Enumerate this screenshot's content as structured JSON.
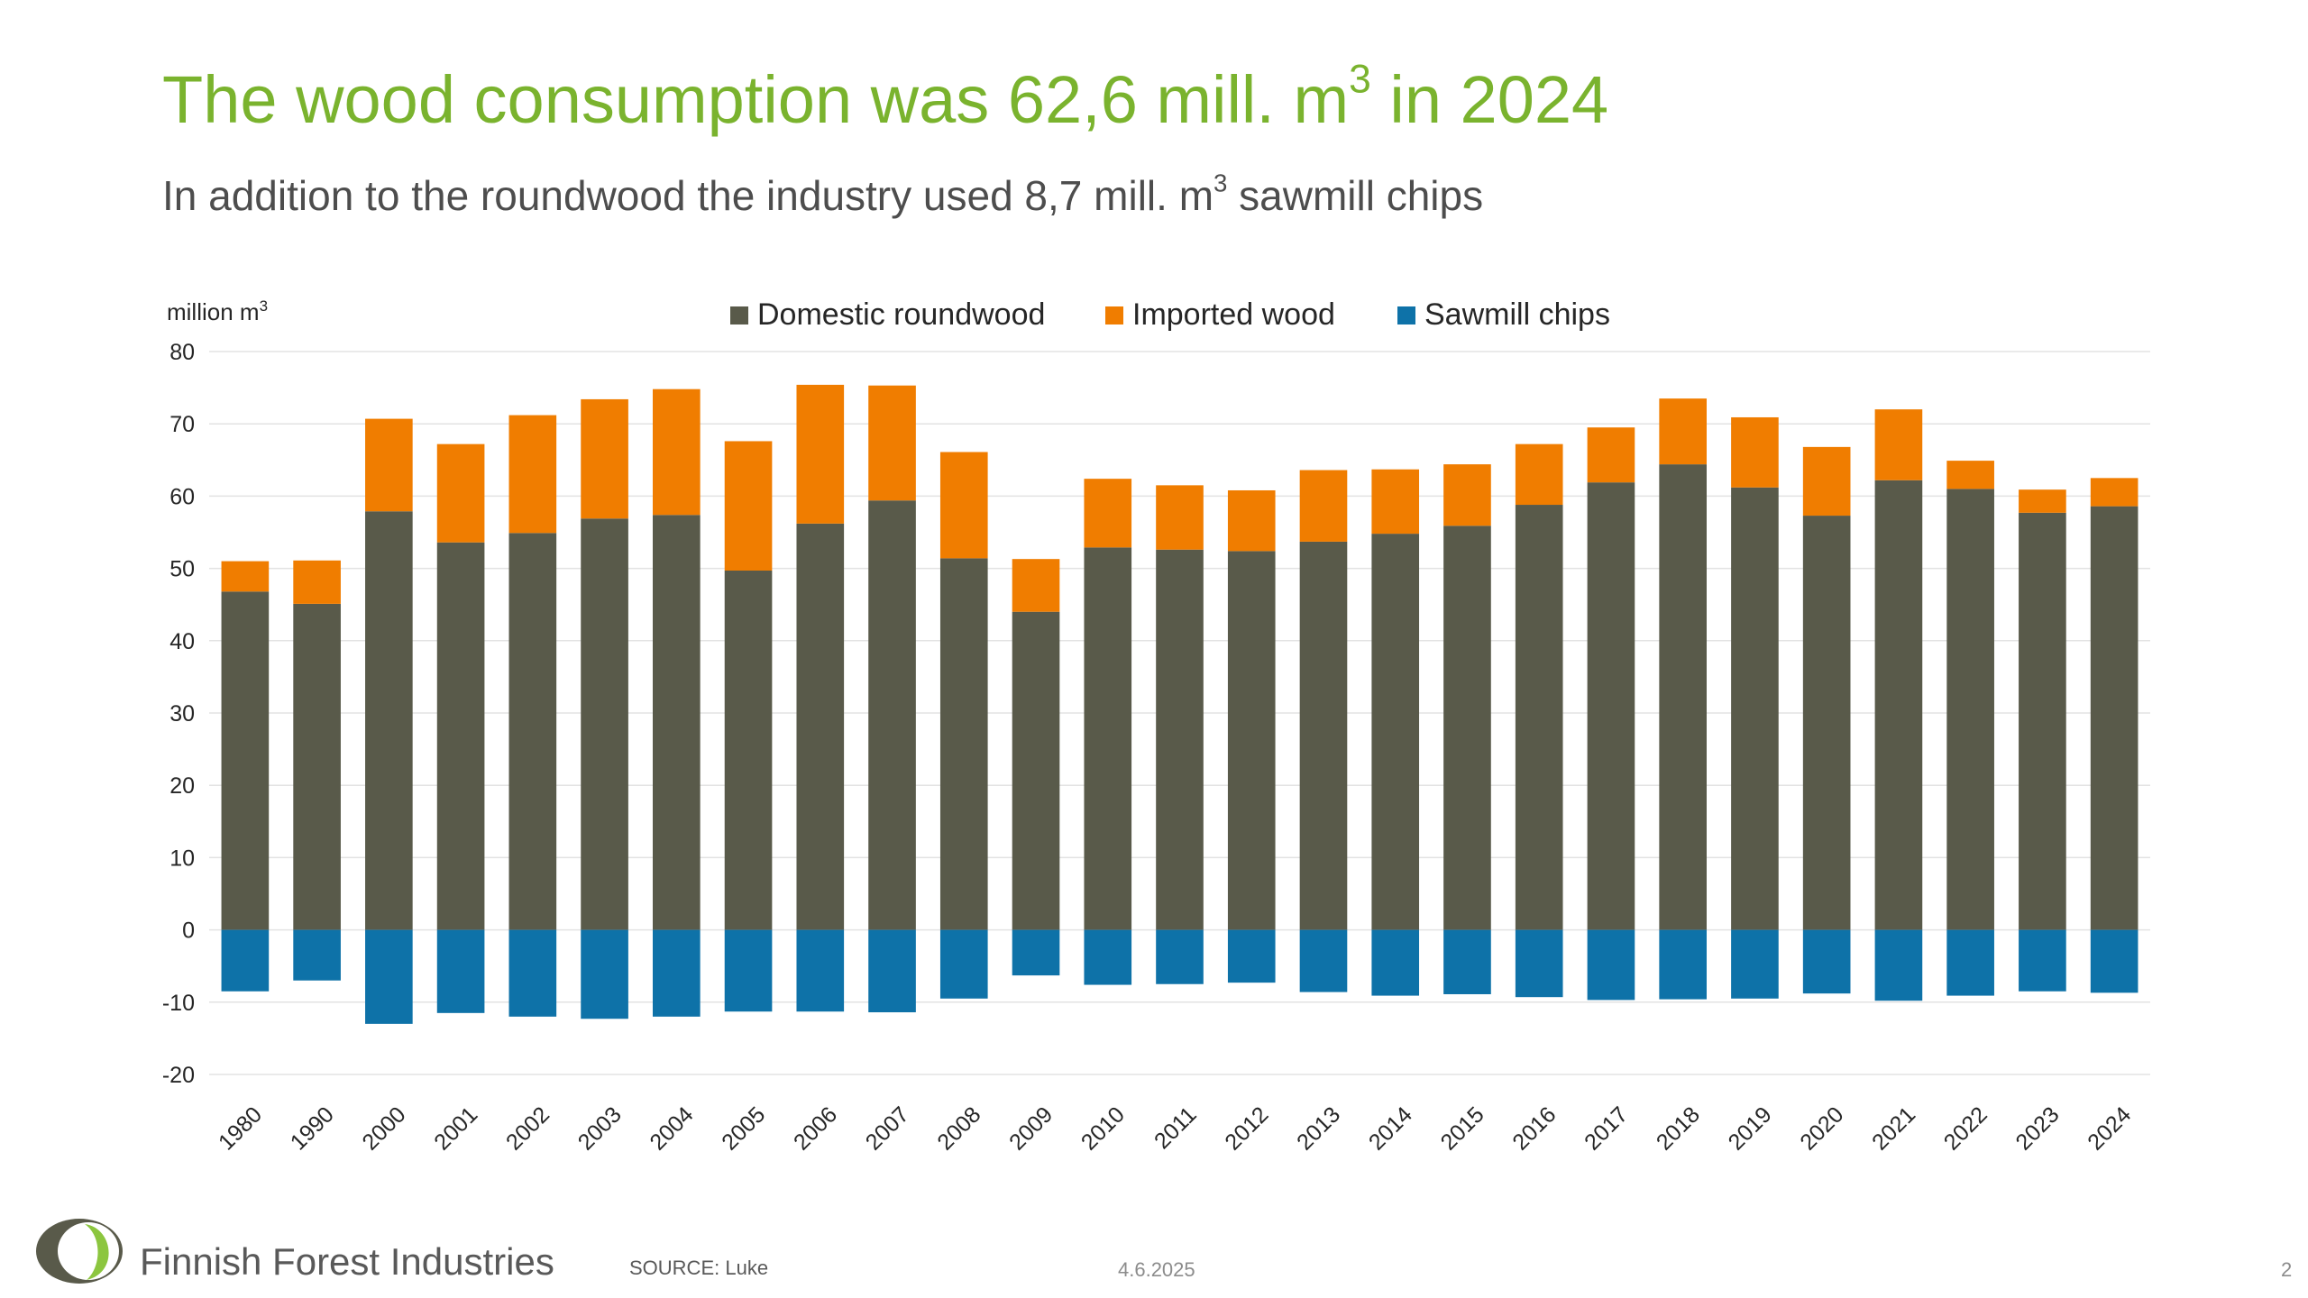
{
  "slide": {
    "title_main": "The wood consumption was 62,6 mill. m",
    "title_sup": "3",
    "title_end": " in 2024",
    "subtitle_main": "In addition to the roundwood the industry used 8,7 mill. m",
    "subtitle_sup": "3",
    "subtitle_end": " sawmill chips",
    "footer": {
      "company": "Finnish Forest Industries",
      "source": "SOURCE: Luke",
      "date": "4.6.2025",
      "page": "2"
    }
  },
  "chart_data": {
    "type": "bar",
    "stacked": true,
    "ylabel": "million m",
    "ylabel_sup": "3",
    "ylim": [
      -20,
      80
    ],
    "yticks": [
      -20,
      -10,
      0,
      10,
      20,
      30,
      40,
      50,
      60,
      70,
      80
    ],
    "grid": true,
    "legend": "top-center",
    "categories": [
      "1980",
      "1990",
      "2000",
      "2001",
      "2002",
      "2003",
      "2004",
      "2005",
      "2006",
      "2007",
      "2008",
      "2009",
      "2010",
      "2011",
      "2012",
      "2013",
      "2014",
      "2015",
      "2016",
      "2017",
      "2018",
      "2019",
      "2020",
      "2021",
      "2022",
      "2023",
      "2024"
    ],
    "series": [
      {
        "name": "Domestic roundwood",
        "color": "#595a4a",
        "values": [
          46.8,
          45.1,
          57.9,
          53.6,
          54.9,
          56.9,
          57.4,
          49.7,
          56.2,
          59.4,
          51.4,
          44.0,
          52.9,
          52.6,
          52.4,
          53.7,
          54.8,
          55.9,
          58.8,
          61.9,
          64.4,
          61.2,
          57.3,
          62.2,
          61.0,
          57.7,
          58.6
        ]
      },
      {
        "name": "Imported wood",
        "color": "#f07d00",
        "values": [
          4.2,
          6.0,
          12.8,
          13.6,
          16.3,
          16.5,
          17.4,
          17.9,
          19.2,
          15.9,
          14.7,
          7.3,
          9.5,
          8.9,
          8.4,
          9.9,
          8.9,
          8.5,
          8.4,
          7.6,
          9.1,
          9.7,
          9.5,
          9.8,
          3.9,
          3.2,
          3.9
        ]
      },
      {
        "name": "Sawmill chips",
        "color": "#0e72a8",
        "values": [
          -8.5,
          -7.0,
          -13.0,
          -11.5,
          -12.0,
          -12.3,
          -12.0,
          -11.3,
          -11.3,
          -11.4,
          -9.5,
          -6.3,
          -7.6,
          -7.5,
          -7.3,
          -8.6,
          -9.1,
          -8.9,
          -9.3,
          -9.7,
          -9.6,
          -9.5,
          -8.8,
          -9.8,
          -9.1,
          -8.5,
          -8.7
        ]
      }
    ]
  }
}
